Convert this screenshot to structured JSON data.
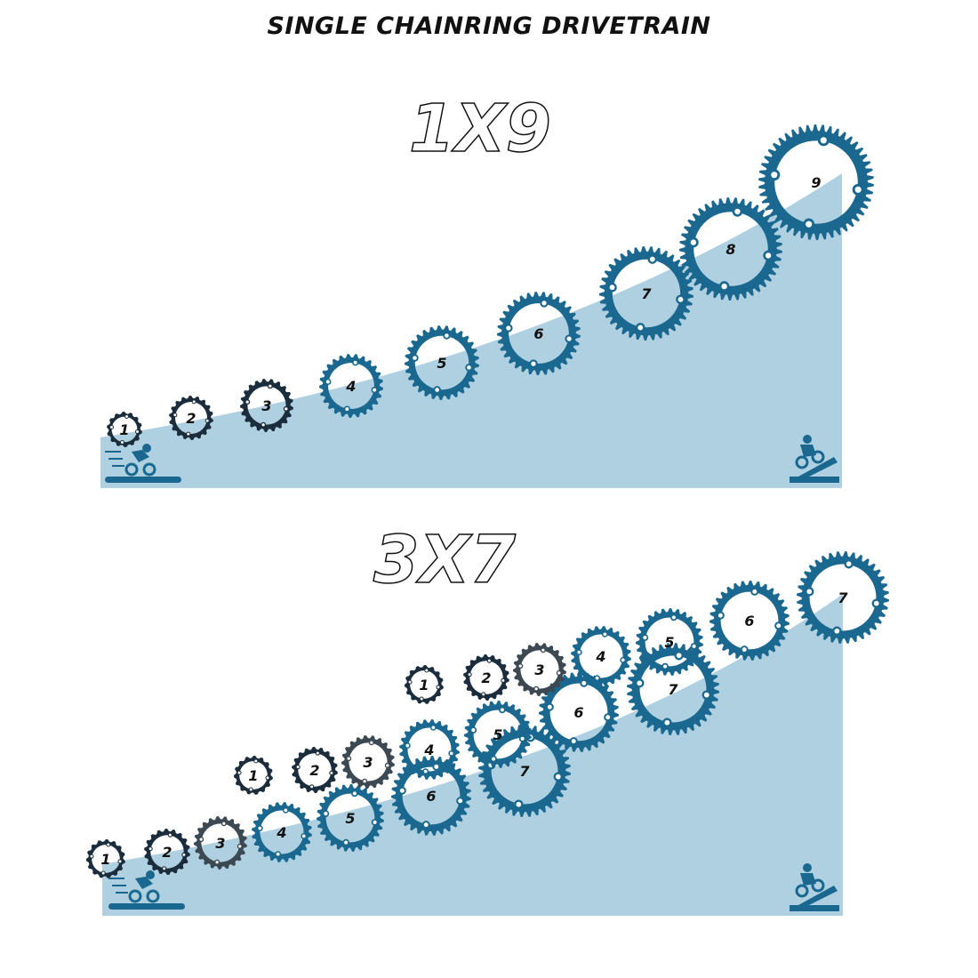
{
  "title": "SINGLE CHAINRING DRIVETRAIN",
  "colors": {
    "ramp": "#aed0e0",
    "blue": "#1a6890",
    "navy": "#1b2d3c",
    "gray": "#3c4852",
    "text": "#111111"
  },
  "panels": [
    {
      "label": "1X9",
      "gears": [
        {
          "label": "1",
          "shade": "navy"
        },
        {
          "label": "2",
          "shade": "navy"
        },
        {
          "label": "3",
          "shade": "navy"
        },
        {
          "label": "4",
          "shade": "blue"
        },
        {
          "label": "5",
          "shade": "blue"
        },
        {
          "label": "6",
          "shade": "blue"
        },
        {
          "label": "7",
          "shade": "blue"
        },
        {
          "label": "8",
          "shade": "blue"
        },
        {
          "label": "9",
          "shade": "blue"
        }
      ]
    },
    {
      "label": "3X7",
      "gears": [
        {
          "label": "1",
          "shade": "navy"
        },
        {
          "label": "2",
          "shade": "navy"
        },
        {
          "label": "3",
          "shade": "gray"
        },
        {
          "label": "4",
          "shade": "blue"
        },
        {
          "label": "5",
          "shade": "blue"
        },
        {
          "label": "6",
          "shade": "blue"
        },
        {
          "label": "7",
          "shade": "blue"
        },
        {
          "label": "1",
          "shade": "navy"
        },
        {
          "label": "2",
          "shade": "navy"
        },
        {
          "label": "3",
          "shade": "gray"
        },
        {
          "label": "4",
          "shade": "blue"
        },
        {
          "label": "5",
          "shade": "blue"
        },
        {
          "label": "6",
          "shade": "blue"
        },
        {
          "label": "7",
          "shade": "blue"
        },
        {
          "label": "1",
          "shade": "navy"
        },
        {
          "label": "2",
          "shade": "navy"
        },
        {
          "label": "3",
          "shade": "gray"
        },
        {
          "label": "4",
          "shade": "blue"
        },
        {
          "label": "5",
          "shade": "blue"
        },
        {
          "label": "6",
          "shade": "blue"
        },
        {
          "label": "7",
          "shade": "blue"
        }
      ]
    }
  ],
  "icons": [
    "cyclist-flat-icon",
    "cyclist-uphill-icon"
  ]
}
